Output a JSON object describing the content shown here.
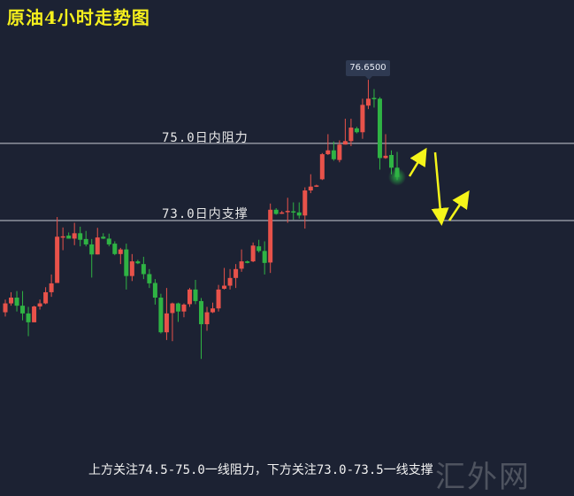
{
  "title": "原油4小时走势图",
  "price_tag": "76.6500",
  "levels": [
    {
      "label": "75.0日内阻力",
      "value": 75.0
    },
    {
      "label": "73.0日内支撑",
      "value": 73.0
    }
  ],
  "note": "上方关注74.5-75.0一线阻力，下方关注73.0-73.5一线支撑",
  "watermark": "汇外网",
  "colors": {
    "background": "#1c2233",
    "up": "#e8524a",
    "down": "#2fb344",
    "title": "#f5ef1d",
    "arrow": "#f5f51a",
    "level_line": "#c9ccd4"
  },
  "chart_data": {
    "type": "candlestick",
    "title": "原油4小时走势图",
    "ylim": [
      65.9,
      78.72
    ],
    "grid": false,
    "fields": [
      "open",
      "high",
      "low",
      "close"
    ],
    "candles": [
      [
        70.62,
        70.95,
        70.51,
        70.85
      ],
      [
        70.85,
        71.14,
        70.79,
        71.0
      ],
      [
        71.0,
        71.17,
        70.64,
        70.79
      ],
      [
        70.79,
        71.17,
        70.41,
        70.59
      ],
      [
        70.59,
        70.76,
        70.0,
        70.36
      ],
      [
        70.36,
        70.79,
        70.36,
        70.77
      ],
      [
        70.77,
        70.95,
        70.69,
        70.85
      ],
      [
        70.85,
        71.27,
        70.83,
        71.14
      ],
      [
        71.14,
        71.6,
        71.02,
        71.37
      ],
      [
        71.38,
        73.09,
        71.38,
        72.58
      ],
      [
        72.58,
        72.82,
        72.23,
        72.59
      ],
      [
        72.61,
        72.69,
        72.53,
        72.53
      ],
      [
        72.53,
        72.94,
        72.36,
        72.67
      ],
      [
        72.67,
        72.84,
        72.33,
        72.5
      ],
      [
        72.52,
        72.73,
        72.33,
        72.38
      ],
      [
        72.38,
        72.52,
        71.52,
        72.12
      ],
      [
        72.12,
        72.81,
        72.12,
        72.56
      ],
      [
        72.58,
        72.67,
        72.52,
        72.53
      ],
      [
        72.53,
        72.66,
        72.33,
        72.38
      ],
      [
        72.4,
        72.46,
        72.1,
        72.13
      ],
      [
        72.13,
        72.29,
        71.87,
        72.25
      ],
      [
        72.25,
        72.4,
        71.21,
        71.56
      ],
      [
        71.56,
        72.13,
        71.43,
        71.94
      ],
      [
        71.94,
        71.98,
        71.87,
        71.89
      ],
      [
        71.87,
        72.06,
        71.48,
        71.61
      ],
      [
        71.61,
        71.74,
        71.25,
        71.37
      ],
      [
        71.38,
        71.48,
        70.82,
        71.0
      ],
      [
        71.0,
        71.1,
        70.07,
        70.1
      ],
      [
        70.1,
        71.25,
        69.9,
        70.59
      ],
      [
        70.6,
        70.87,
        69.87,
        70.85
      ],
      [
        70.85,
        70.87,
        70.37,
        70.64
      ],
      [
        70.64,
        70.85,
        70.49,
        70.82
      ],
      [
        70.83,
        71.25,
        70.76,
        71.21
      ],
      [
        71.21,
        71.46,
        70.83,
        70.91
      ],
      [
        70.91,
        70.99,
        69.41,
        70.31
      ],
      [
        70.31,
        70.76,
        70.14,
        70.62
      ],
      [
        70.62,
        70.87,
        70.6,
        70.72
      ],
      [
        70.72,
        71.33,
        70.64,
        71.21
      ],
      [
        71.23,
        71.77,
        71.21,
        71.31
      ],
      [
        71.31,
        71.74,
        71.21,
        71.51
      ],
      [
        71.51,
        71.87,
        71.25,
        71.74
      ],
      [
        71.75,
        72.25,
        71.67,
        71.94
      ],
      [
        71.94,
        71.96,
        71.89,
        71.9
      ],
      [
        71.94,
        72.43,
        71.92,
        72.35
      ],
      [
        72.33,
        72.5,
        72.17,
        72.21
      ],
      [
        72.21,
        72.46,
        71.6,
        71.9
      ],
      [
        71.91,
        73.44,
        71.64,
        73.28
      ],
      [
        73.28,
        73.32,
        73.15,
        73.17
      ],
      [
        73.2,
        73.25,
        73.17,
        73.21
      ],
      [
        73.24,
        73.59,
        72.94,
        73.25
      ],
      [
        73.24,
        73.47,
        73.02,
        73.22
      ],
      [
        73.21,
        73.47,
        73.05,
        73.13
      ],
      [
        73.13,
        73.86,
        72.79,
        73.78
      ],
      [
        73.78,
        74.2,
        73.71,
        73.88
      ],
      [
        73.89,
        73.93,
        73.87,
        73.91
      ],
      [
        74.07,
        74.75,
        74.05,
        74.72
      ],
      [
        74.72,
        75.24,
        74.7,
        74.82
      ],
      [
        74.82,
        75.05,
        74.55,
        74.59
      ],
      [
        74.57,
        75.08,
        74.51,
        74.97
      ],
      [
        74.97,
        75.64,
        74.97,
        75.06
      ],
      [
        75.06,
        75.64,
        74.93,
        75.41
      ],
      [
        75.39,
        75.43,
        75.26,
        75.29
      ],
      [
        75.29,
        76.16,
        75.12,
        76.0
      ],
      [
        75.98,
        76.65,
        75.89,
        76.16
      ],
      [
        76.18,
        76.41,
        75.93,
        76.16
      ],
      [
        76.16,
        76.2,
        74.32,
        74.62
      ],
      [
        74.62,
        75.24,
        74.6,
        74.68
      ],
      [
        74.7,
        74.82,
        74.2,
        74.37
      ],
      [
        74.37,
        74.78,
        74.05,
        74.13
      ]
    ],
    "annotations": [
      "76.6500",
      "75.0日内阻力",
      "73.0日内支撑"
    ]
  }
}
